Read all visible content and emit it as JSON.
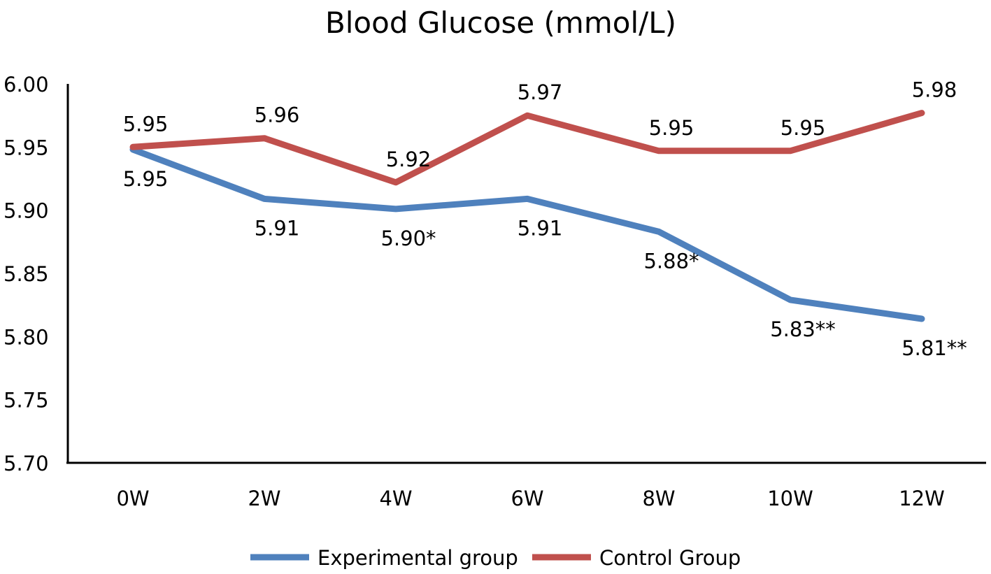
{
  "chart_data": {
    "type": "line",
    "title": "Blood Glucose (mmol/L)",
    "xlabel": "",
    "ylabel": "",
    "categories": [
      "0W",
      "2W",
      "4W",
      "6W",
      "8W",
      "10W",
      "12W"
    ],
    "ylim": [
      5.7,
      6.0
    ],
    "yticks": [
      "5.70",
      "5.75",
      "5.80",
      "5.85",
      "5.90",
      "5.95",
      "6.00"
    ],
    "grid": false,
    "legend_position": "bottom",
    "series": [
      {
        "name": "Experimental group",
        "color": "#4f81bd",
        "values": [
          5.948,
          5.909,
          5.901,
          5.909,
          5.883,
          5.829,
          5.814
        ],
        "labels": [
          "5.95",
          "5.91",
          "5.90*",
          "5.91",
          "5.88*",
          "5.83**",
          "5.81**"
        ]
      },
      {
        "name": "Control Group",
        "color": "#c0504d",
        "values": [
          5.95,
          5.957,
          5.922,
          5.975,
          5.947,
          5.947,
          5.977
        ],
        "labels": [
          "5.95",
          "5.96",
          "5.92",
          "5.97",
          "5.95",
          "5.95",
          "5.98"
        ]
      }
    ]
  }
}
